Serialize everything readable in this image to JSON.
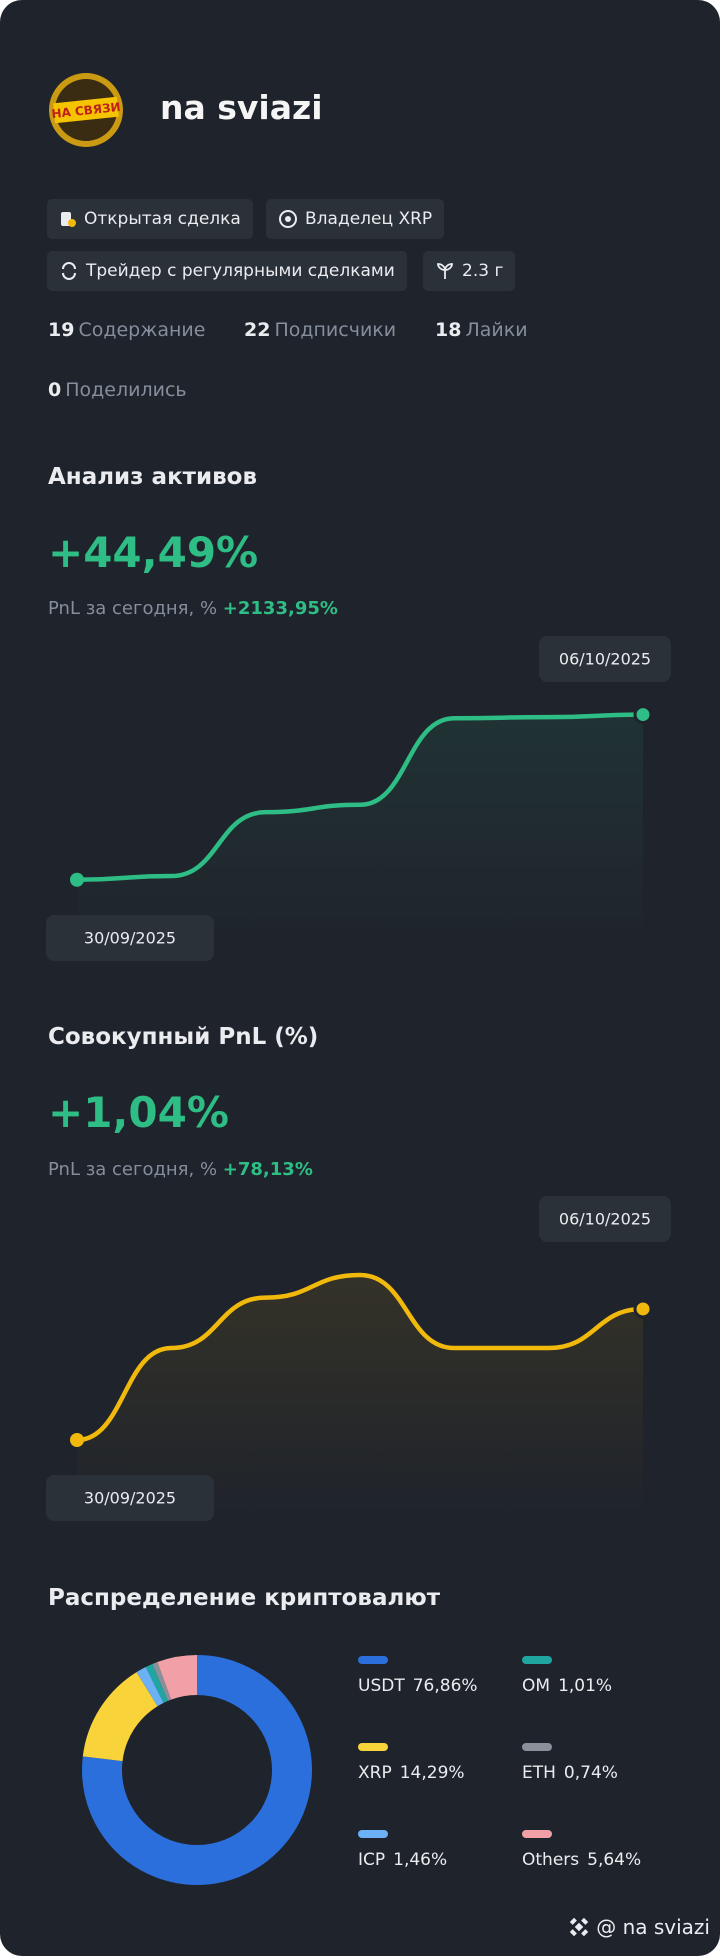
{
  "profile": {
    "name": "na sviazi",
    "avatar_text": "НА СВЯЗИ"
  },
  "badges": [
    "Открытая сделка",
    "Владелец XRP",
    "Трейдер с регулярными сделками",
    "2.3 г"
  ],
  "stats": [
    {
      "count": 19,
      "label": "Содержание"
    },
    {
      "count": 22,
      "label": "Подписчики"
    },
    {
      "count": 18,
      "label": "Лайки"
    },
    {
      "count": 0,
      "label": "Поделились"
    }
  ],
  "chart_data": [
    {
      "type": "line",
      "title": "Анализ активов",
      "headline": "+44,49%",
      "subtitle": "PnL за сегодня, %",
      "subtitle_value": "+2133,95%",
      "categories": [
        "30/09/2025",
        null,
        null,
        null,
        null,
        null,
        "06/10/2025"
      ],
      "values": [
        0,
        1.0,
        18.2,
        20.2,
        43.5,
        43.8,
        44.49
      ],
      "color": "#2ebd85",
      "ylim": [
        -20,
        60
      ]
    },
    {
      "type": "line",
      "title": "Совокупный PnL (%)",
      "headline": "+1,04%",
      "subtitle": "PnL за сегодня, %",
      "subtitle_value": "+78,13%",
      "categories": [
        "30/09/2025",
        null,
        null,
        null,
        null,
        null,
        "06/10/2025"
      ],
      "values": [
        0,
        0.73,
        1.13,
        1.31,
        0.73,
        0.73,
        1.04
      ],
      "color": "#f0b90b",
      "ylim": [
        -0.6,
        1.9
      ]
    },
    {
      "type": "pie",
      "title": "Распределение криптовалют",
      "categories": [
        "USDT",
        "XRP",
        "ICP",
        "OM",
        "ETH",
        "Others"
      ],
      "values": [
        76.86,
        14.29,
        1.46,
        1.01,
        0.74,
        5.64
      ],
      "value_labels": [
        "76,86%",
        "14,29%",
        "1,46%",
        "1,01%",
        "0,74%",
        "5,64%"
      ],
      "colors": [
        "#2a6fdb",
        "#f8d33a",
        "#6cb0f5",
        "#1fa6a0",
        "#8a9099",
        "#f2a0a8"
      ]
    }
  ],
  "footer": "@ na sviazi"
}
